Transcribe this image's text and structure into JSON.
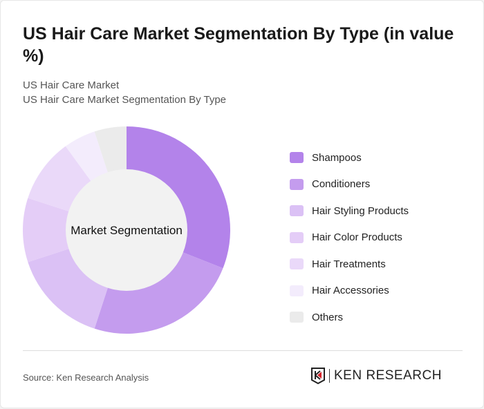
{
  "title": "US Hair Care Market Segmentation By Type (in value %)",
  "subtitle1": "US Hair Care Market",
  "subtitle2": "US Hair Care Market Segmentation By Type",
  "source": "Source: Ken Research Analysis",
  "logo": "KEN RESEARCH",
  "chart_data": {
    "type": "pie",
    "donut": true,
    "center_label": "Market Segmentation",
    "legend_position": "right",
    "categories": [
      "Shampoos",
      "Conditioners",
      "Hair Styling Products",
      "Hair Color Products",
      "Hair Treatments",
      "Hair Accessories",
      "Others"
    ],
    "values": [
      31,
      24,
      15,
      10,
      10,
      5,
      5
    ],
    "colors": [
      "#b383ea",
      "#c49cee",
      "#dbc1f5",
      "#e4cdf7",
      "#ead9f9",
      "#f3ecfc",
      "#ebebeb"
    ]
  }
}
